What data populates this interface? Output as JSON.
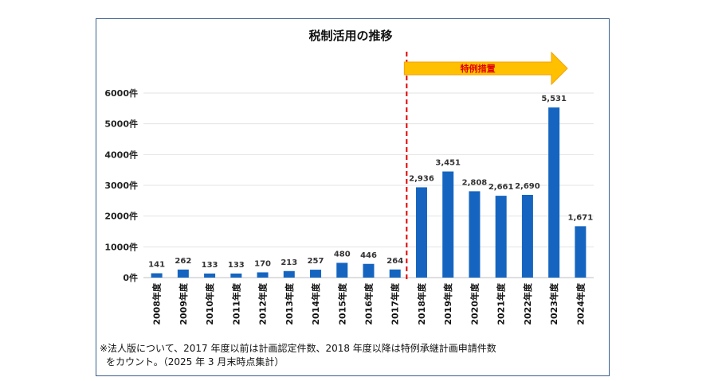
{
  "chart_data": {
    "type": "bar",
    "title": "税制活用の推移",
    "categories": [
      "2008年度",
      "2009年度",
      "2010年度",
      "2011年度",
      "2012年度",
      "2013年度",
      "2014年度",
      "2015年度",
      "2016年度",
      "2017年度",
      "2018年度",
      "2019年度",
      "2020年度",
      "2021年度",
      "2022年度",
      "2023年度",
      "2024年度"
    ],
    "values": [
      141,
      262,
      133,
      133,
      170,
      213,
      257,
      480,
      446,
      264,
      2936,
      3451,
      2808,
      2661,
      2690,
      5531,
      1671
    ],
    "value_labels": [
      "141",
      "262",
      "133",
      "133",
      "170",
      "213",
      "257",
      "480",
      "446",
      "264",
      "2,936",
      "3,451",
      "2,808",
      "2,661",
      "2,690",
      "5,531",
      "1,671"
    ],
    "yticks": [
      0,
      1000,
      2000,
      3000,
      4000,
      5000,
      6000
    ],
    "ytick_labels": [
      "0件",
      "1000件",
      "2000件",
      "3000件",
      "4000件",
      "5000件",
      "6000件"
    ],
    "ylim": [
      0,
      6000
    ],
    "grid": true,
    "bar_color": "#1565c0",
    "annotation": {
      "label": "特例措置",
      "from_category": "2018年度",
      "divider_after_category": "2017年度",
      "arrow_color": "#ffc000",
      "arrow_edge_color": "#f5a000",
      "label_color": "#e00000",
      "divider_color": "#e00000"
    }
  },
  "note": {
    "line1": "※法人版について、2017 年度以前は計画認定件数、2018 年度以降は特例承継計画申請件数",
    "line2": "をカウント。（2025 年 3 月末時点集計）"
  }
}
